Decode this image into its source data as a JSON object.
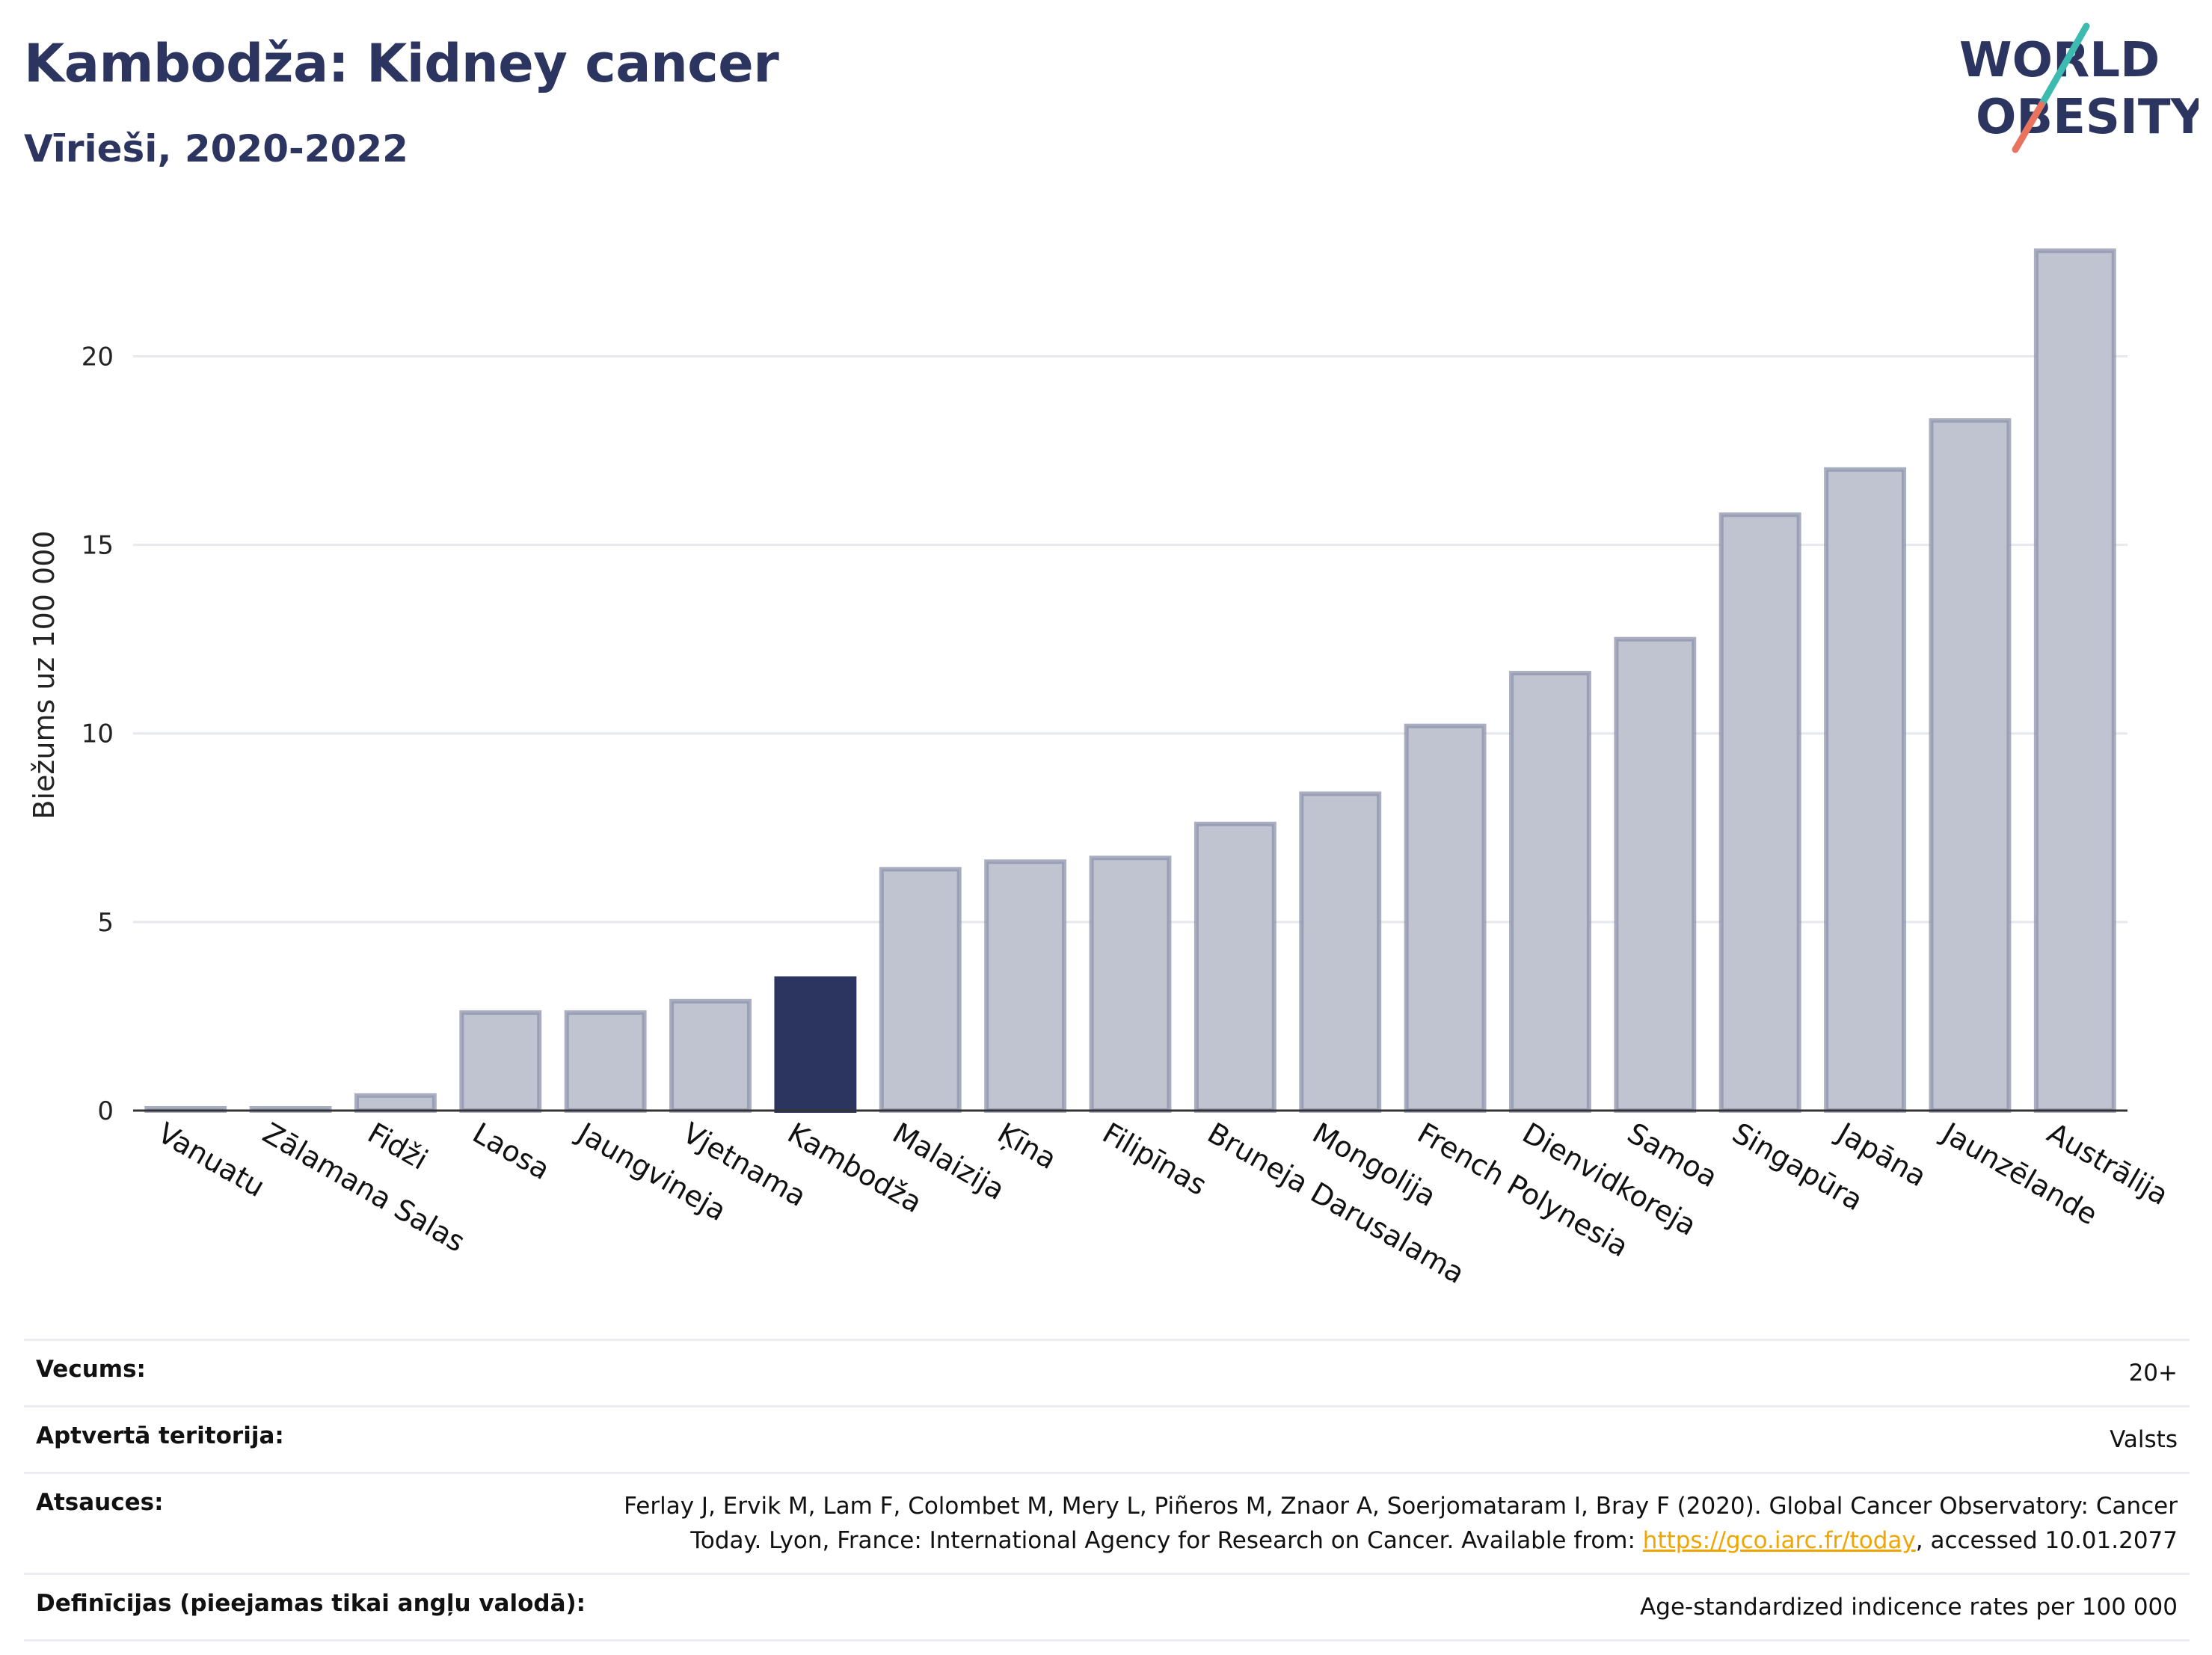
{
  "header": {
    "title": "Kambodža: Kidney cancer",
    "subtitle": "Vīrieši, 2020-2022"
  },
  "logo": {
    "line1": "WORLD",
    "line2": "OBESITY"
  },
  "chart_data": {
    "type": "bar",
    "ylabel": "Biežums uz 100 000",
    "ylim": [
      0,
      23.5
    ],
    "yticks": [
      0,
      5,
      10,
      15,
      20
    ],
    "grid": true,
    "highlight": "Kambodža",
    "highlight_color": "#2b3560",
    "bar_color": "#c0c3d0",
    "bar_edge_color": "#8d93ac",
    "categories": [
      "Vanuatu",
      "Zālamana Salas",
      "Fidži",
      "Laosa",
      "Jaungvineja",
      "Vjetnama",
      "Kambodža",
      "Malaizija",
      "Ķīna",
      "Filipīnas",
      "Bruneja Darusalama",
      "Mongolija",
      "French Polynesia",
      "Dienvidkoreja",
      "Samoa",
      "Singapūra",
      "Japāna",
      "Jaunzēlande",
      "Austrālija"
    ],
    "values": [
      0.05,
      0.05,
      0.4,
      2.6,
      2.6,
      2.9,
      3.5,
      6.4,
      6.6,
      6.7,
      7.6,
      8.4,
      10.2,
      11.6,
      12.5,
      15.8,
      17.0,
      18.3,
      22.8
    ]
  },
  "meta": {
    "age_label": "Vecums:",
    "age_value": "20+",
    "coverage_label": "Aptvertā teritorija:",
    "coverage_value": "Valsts",
    "refs_label": "Atsauces:",
    "refs_text_1": "Ferlay J, Ervik M, Lam F, Colombet M, Mery L, Piñeros M, Znaor A, Soerjomataram I, Bray F (2020). Global Cancer Observatory: Cancer",
    "refs_text_2": "Today. Lyon, France: International Agency for Research on Cancer. Available from: ",
    "refs_link": "https://gco.iarc.fr/today",
    "refs_text_3": ", accessed 10.01.2077",
    "defs_label": "Definīcijas (pieejamas tikai angļu valodā):",
    "defs_value": "Age-standardized indicence rates per 100 000"
  }
}
